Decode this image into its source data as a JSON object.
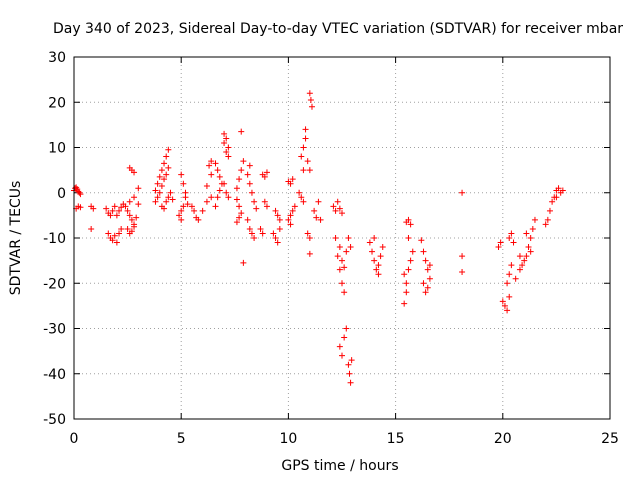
{
  "chart_data": {
    "type": "scatter",
    "title": "Day 340 of 2023, Sidereal Day-to-day VTEC variation (SDTVAR) for receiver mbar",
    "xlabel": "GPS time / hours",
    "ylabel": "SDTVAR / TECUs",
    "xlim": [
      0,
      25
    ],
    "ylim": [
      -50,
      30
    ],
    "xticks": [
      0,
      5,
      10,
      15,
      20,
      25
    ],
    "yticks": [
      -50,
      -40,
      -30,
      -20,
      -10,
      0,
      10,
      20,
      30
    ],
    "grid": true,
    "marker": "+",
    "marker_color": "#ff0000",
    "series": [
      {
        "name": "SDTVAR",
        "points": [
          [
            0.0,
            0.5
          ],
          [
            0.05,
            1.0
          ],
          [
            0.1,
            1.2
          ],
          [
            0.15,
            0.8
          ],
          [
            0.2,
            0.3
          ],
          [
            0.25,
            0.0
          ],
          [
            0.3,
            -0.3
          ],
          [
            0.1,
            -3.5
          ],
          [
            0.2,
            -3.0
          ],
          [
            0.3,
            -3.2
          ],
          [
            0.8,
            -3.0
          ],
          [
            0.9,
            -3.5
          ],
          [
            0.8,
            -8.0
          ],
          [
            1.5,
            -3.5
          ],
          [
            1.6,
            -4.5
          ],
          [
            1.7,
            -5.0
          ],
          [
            1.8,
            -4.0
          ],
          [
            1.9,
            -3.0
          ],
          [
            2.0,
            -5.0
          ],
          [
            2.1,
            -4.0
          ],
          [
            2.2,
            -3.2
          ],
          [
            2.3,
            -2.5
          ],
          [
            2.4,
            -3.0
          ],
          [
            1.6,
            -9.0
          ],
          [
            1.7,
            -10.0
          ],
          [
            1.8,
            -10.5
          ],
          [
            1.9,
            -9.5
          ],
          [
            2.0,
            -11.0
          ],
          [
            2.1,
            -9.0
          ],
          [
            2.2,
            -8.0
          ],
          [
            2.5,
            -4.0
          ],
          [
            2.6,
            -5.0
          ],
          [
            2.7,
            -6.0
          ],
          [
            2.8,
            -7.0
          ],
          [
            2.9,
            -5.5
          ],
          [
            2.5,
            -8.0
          ],
          [
            2.6,
            -9.0
          ],
          [
            2.7,
            -8.5
          ],
          [
            2.8,
            -7.5
          ],
          [
            2.6,
            5.5
          ],
          [
            2.7,
            5.0
          ],
          [
            2.8,
            4.5
          ],
          [
            2.6,
            -2.0
          ],
          [
            2.8,
            -1.0
          ],
          [
            3.0,
            1.0
          ],
          [
            3.0,
            -2.5
          ],
          [
            3.8,
            0.5
          ],
          [
            3.9,
            2.0
          ],
          [
            4.0,
            3.5
          ],
          [
            4.1,
            5.0
          ],
          [
            4.2,
            6.5
          ],
          [
            4.3,
            8.0
          ],
          [
            4.4,
            9.5
          ],
          [
            3.8,
            -2.0
          ],
          [
            3.9,
            -1.0
          ],
          [
            4.0,
            0.0
          ],
          [
            4.1,
            1.5
          ],
          [
            4.2,
            3.0
          ],
          [
            4.3,
            4.0
          ],
          [
            4.4,
            5.5
          ],
          [
            4.1,
            -3.0
          ],
          [
            4.2,
            -3.5
          ],
          [
            4.3,
            -2.0
          ],
          [
            4.4,
            -1.0
          ],
          [
            4.5,
            0.0
          ],
          [
            4.6,
            -1.5
          ],
          [
            4.9,
            -5.0
          ],
          [
            5.0,
            -4.0
          ],
          [
            5.1,
            -3.0
          ],
          [
            5.0,
            4.0
          ],
          [
            5.1,
            2.0
          ],
          [
            5.2,
            0.0
          ],
          [
            5.0,
            -6.0
          ],
          [
            5.2,
            -1.0
          ],
          [
            5.3,
            -2.5
          ],
          [
            5.5,
            -3.0
          ],
          [
            5.6,
            -4.0
          ],
          [
            5.7,
            -5.5
          ],
          [
            5.8,
            -6.0
          ],
          [
            6.0,
            -4.0
          ],
          [
            6.2,
            -2.0
          ],
          [
            6.4,
            -1.0
          ],
          [
            6.2,
            1.5
          ],
          [
            6.4,
            4.0
          ],
          [
            6.4,
            7.0
          ],
          [
            6.3,
            6.0
          ],
          [
            6.7,
            -1.0
          ],
          [
            6.8,
            0.5
          ],
          [
            6.9,
            2.0
          ],
          [
            6.6,
            6.5
          ],
          [
            6.7,
            5.0
          ],
          [
            6.8,
            3.5
          ],
          [
            6.6,
            -3.0
          ],
          [
            7.0,
            13.0
          ],
          [
            7.1,
            12.0
          ],
          [
            7.2,
            10.0
          ],
          [
            7.0,
            11.0
          ],
          [
            7.1,
            9.0
          ],
          [
            7.2,
            8.0
          ],
          [
            7.0,
            2.0
          ],
          [
            7.1,
            0.0
          ],
          [
            7.2,
            -1.0
          ],
          [
            7.6,
            1.0
          ],
          [
            7.7,
            3.0
          ],
          [
            7.8,
            5.0
          ],
          [
            7.9,
            7.0
          ],
          [
            7.6,
            -1.5
          ],
          [
            7.7,
            -3.0
          ],
          [
            7.8,
            -4.5
          ],
          [
            7.6,
            -6.5
          ],
          [
            7.7,
            -5.5
          ],
          [
            7.8,
            13.5
          ],
          [
            7.9,
            -15.5
          ],
          [
            8.1,
            4.0
          ],
          [
            8.2,
            2.0
          ],
          [
            8.3,
            0.0
          ],
          [
            8.4,
            -2.0
          ],
          [
            8.5,
            -3.5
          ],
          [
            8.2,
            -8.0
          ],
          [
            8.3,
            -9.0
          ],
          [
            8.4,
            -10.0
          ],
          [
            8.1,
            -6.0
          ],
          [
            8.2,
            6.0
          ],
          [
            8.8,
            4.0
          ],
          [
            8.9,
            3.5
          ],
          [
            9.0,
            4.5
          ],
          [
            9.0,
            -3.0
          ],
          [
            8.9,
            -2.0
          ],
          [
            8.7,
            -8.0
          ],
          [
            8.8,
            -9.0
          ],
          [
            9.3,
            -9.0
          ],
          [
            9.4,
            -10.0
          ],
          [
            9.5,
            -11.0
          ],
          [
            9.6,
            -8.0
          ],
          [
            9.4,
            -4.0
          ],
          [
            9.5,
            -5.0
          ],
          [
            9.6,
            -6.0
          ],
          [
            10.0,
            2.5
          ],
          [
            10.1,
            2.0
          ],
          [
            10.2,
            3.0
          ],
          [
            10.0,
            -6.0
          ],
          [
            10.1,
            -5.0
          ],
          [
            10.2,
            -4.0
          ],
          [
            10.3,
            -3.0
          ],
          [
            10.1,
            -7.0
          ],
          [
            10.5,
            0.0
          ],
          [
            10.6,
            -1.0
          ],
          [
            10.7,
            -2.0
          ],
          [
            10.6,
            8.0
          ],
          [
            10.7,
            10.0
          ],
          [
            10.8,
            12.0
          ],
          [
            10.8,
            14.0
          ],
          [
            10.9,
            7.0
          ],
          [
            11.0,
            5.0
          ],
          [
            10.7,
            5.0
          ],
          [
            11.0,
            22.0
          ],
          [
            11.05,
            20.5
          ],
          [
            11.1,
            19.0
          ],
          [
            10.9,
            -9.0
          ],
          [
            11.0,
            -10.0
          ],
          [
            11.0,
            -13.5
          ],
          [
            11.2,
            -4.0
          ],
          [
            11.3,
            -5.5
          ],
          [
            11.4,
            -2.0
          ],
          [
            11.5,
            -6.0
          ],
          [
            12.1,
            -3.0
          ],
          [
            12.2,
            -4.0
          ],
          [
            12.3,
            -2.0
          ],
          [
            12.4,
            -3.5
          ],
          [
            12.5,
            -4.5
          ],
          [
            12.2,
            -10.0
          ],
          [
            12.3,
            -14.0
          ],
          [
            12.4,
            -17.0
          ],
          [
            12.5,
            -20.0
          ],
          [
            12.6,
            -22.0
          ],
          [
            12.4,
            -12.0
          ],
          [
            12.5,
            -15.0
          ],
          [
            12.6,
            -16.5
          ],
          [
            12.7,
            -13.0
          ],
          [
            12.8,
            -10.0
          ],
          [
            12.9,
            -12.0
          ],
          [
            12.4,
            -34.0
          ],
          [
            12.5,
            -36.0
          ],
          [
            12.6,
            -32.0
          ],
          [
            12.7,
            -30.0
          ],
          [
            12.8,
            -38.0
          ],
          [
            12.85,
            -40.0
          ],
          [
            12.9,
            -42.0
          ],
          [
            12.95,
            -37.0
          ],
          [
            13.8,
            -11.0
          ],
          [
            13.9,
            -13.0
          ],
          [
            14.0,
            -15.0
          ],
          [
            14.1,
            -17.0
          ],
          [
            14.2,
            -16.0
          ],
          [
            14.3,
            -14.0
          ],
          [
            14.4,
            -12.0
          ],
          [
            14.0,
            -10.0
          ],
          [
            14.2,
            -18.0
          ],
          [
            15.5,
            -6.5
          ],
          [
            15.6,
            -6.0
          ],
          [
            15.7,
            -7.0
          ],
          [
            15.4,
            -18.0
          ],
          [
            15.5,
            -20.0
          ],
          [
            15.6,
            -17.0
          ],
          [
            15.7,
            -15.0
          ],
          [
            15.8,
            -13.0
          ],
          [
            15.4,
            -24.5
          ],
          [
            15.5,
            -22.0
          ],
          [
            15.6,
            -10.0
          ],
          [
            16.2,
            -10.5
          ],
          [
            16.3,
            -13.0
          ],
          [
            16.4,
            -15.0
          ],
          [
            16.5,
            -17.0
          ],
          [
            16.6,
            -19.0
          ],
          [
            16.3,
            -20.0
          ],
          [
            16.4,
            -22.0
          ],
          [
            16.5,
            -21.0
          ],
          [
            16.6,
            -16.0
          ],
          [
            18.1,
            0.0
          ],
          [
            18.1,
            -14.0
          ],
          [
            18.1,
            -17.5
          ],
          [
            19.8,
            -12.0
          ],
          [
            19.9,
            -11.0
          ],
          [
            20.0,
            -24.0
          ],
          [
            20.1,
            -25.0
          ],
          [
            20.2,
            -26.0
          ],
          [
            20.3,
            -23.0
          ],
          [
            20.2,
            -20.0
          ],
          [
            20.3,
            -18.0
          ],
          [
            20.4,
            -16.0
          ],
          [
            20.3,
            -10.0
          ],
          [
            20.4,
            -9.0
          ],
          [
            20.5,
            -11.0
          ],
          [
            20.8,
            -14.0
          ],
          [
            20.6,
            -19.0
          ],
          [
            20.8,
            -17.0
          ],
          [
            20.9,
            -16.0
          ],
          [
            21.0,
            -15.0
          ],
          [
            21.1,
            -14.0
          ],
          [
            21.2,
            -12.0
          ],
          [
            21.3,
            -10.0
          ],
          [
            21.4,
            -8.0
          ],
          [
            21.5,
            -6.0
          ],
          [
            21.3,
            -13.0
          ],
          [
            21.1,
            -9.0
          ],
          [
            22.0,
            -7.0
          ],
          [
            22.1,
            -6.0
          ],
          [
            22.2,
            -4.0
          ],
          [
            22.3,
            -2.0
          ],
          [
            22.4,
            -1.0
          ],
          [
            22.5,
            0.5
          ],
          [
            22.6,
            1.0
          ],
          [
            22.7,
            0.0
          ],
          [
            22.8,
            0.5
          ],
          [
            22.5,
            -1.0
          ]
        ]
      }
    ]
  }
}
